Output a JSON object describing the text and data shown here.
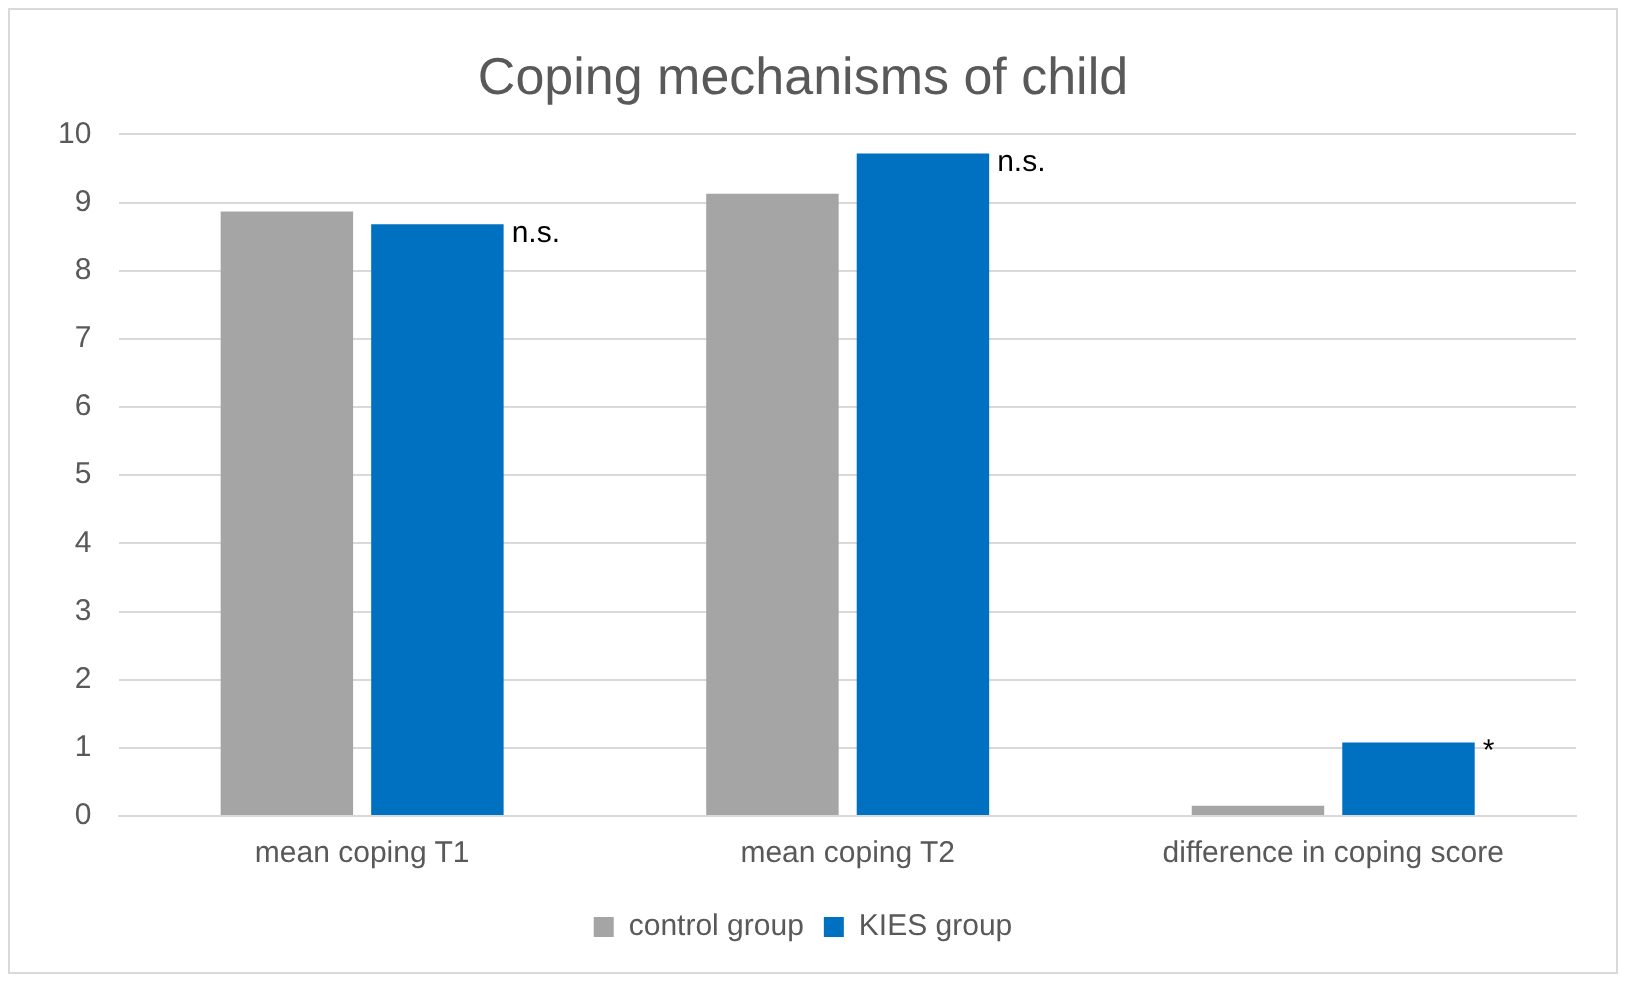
{
  "chart_data": {
    "type": "bar",
    "title": "Coping mechanisms of child",
    "categories": [
      "mean coping T1",
      "mean coping T2",
      "difference in coping score"
    ],
    "series": [
      {
        "name": "control group",
        "color": "#a5a5a5",
        "values": [
          8.87,
          9.13,
          0.15
        ]
      },
      {
        "name": "KIES group",
        "color": "#0070c0",
        "values": [
          8.68,
          9.72,
          1.08
        ]
      }
    ],
    "ylim": [
      0,
      10
    ],
    "yticks": [
      0,
      1,
      2,
      3,
      4,
      5,
      6,
      7,
      8,
      9,
      10
    ],
    "grid": "y",
    "legend": "bottom",
    "annotations": [
      "n.s.",
      "n.s.",
      "*"
    ]
  }
}
